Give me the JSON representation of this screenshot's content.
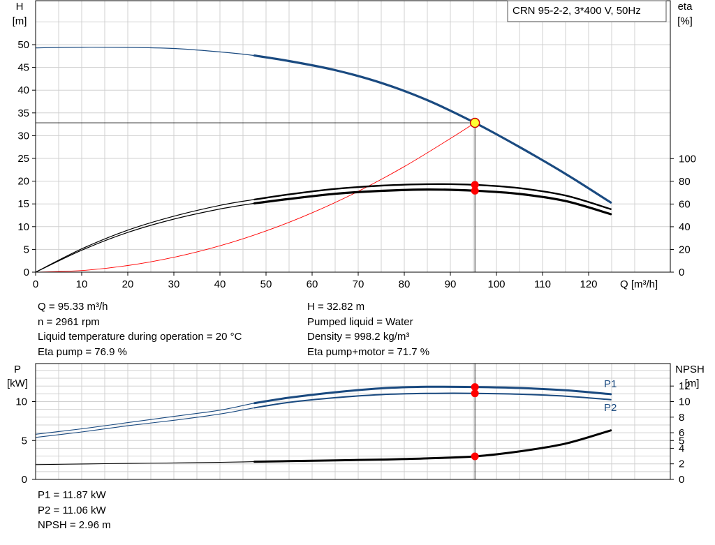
{
  "legend_box": "CRN 95-2-2, 3*400 V, 50Hz",
  "top_chart": {
    "y_label_left": "H",
    "y_unit_left": "[m]",
    "y_label_right": "eta",
    "y_unit_right": "[%]",
    "x_label": "Q [m³/h]"
  },
  "bottom_chart": {
    "y_label_left": "P",
    "y_unit_left": "[kW]",
    "y_label_right": "NPSH",
    "y_unit_right": "[m]",
    "p1_label": "P1",
    "p2_label": "P2"
  },
  "info_top_left": [
    "Q = 95.33 m³/h",
    "n = 2961 rpm",
    "Liquid temperature during operation = 20 °C",
    "Eta pump = 76.9 %"
  ],
  "info_top_right": [
    "H = 32.82 m",
    "Pumped liquid = Water",
    "Density = 998.2 kg/m³",
    "Eta pump+motor = 71.7 %"
  ],
  "info_bottom": [
    "P1 = 11.87 kW",
    "P2 = 11.06 kW",
    "NPSH = 2.96 m"
  ],
  "colors": {
    "head_curve": "#1a4a80",
    "power_curves": "#1a4a80",
    "efficiency_curves": "#000000",
    "npsh_curve": "#000000",
    "system_curve": "#ff0000",
    "duty_point_fill": "#ffff33",
    "duty_point_stroke": "#cc0000",
    "marker": "#ff0000",
    "grid": "#d0d0d0"
  },
  "chart_data": [
    {
      "type": "line",
      "xlabel": "Q [m³/h]",
      "ylabel": "H [m]",
      "y2label": "eta [%]",
      "xlim": [
        0,
        128
      ],
      "ylim": [
        0,
        50
      ],
      "y2lim": [
        0,
        100
      ],
      "x_ticks": [
        0,
        10,
        20,
        30,
        40,
        50,
        60,
        70,
        80,
        90,
        100,
        110,
        120
      ],
      "y_ticks": [
        0,
        5,
        10,
        15,
        20,
        25,
        30,
        35,
        40,
        45,
        50
      ],
      "y2_ticks": [
        0,
        20,
        40,
        60,
        80,
        100
      ],
      "grid": true,
      "duty_point": {
        "x": 95.33,
        "y": 32.82
      },
      "series": [
        {
          "axis": "left",
          "x": [
            0,
            10,
            20,
            30,
            40,
            47.5,
            55,
            65,
            75,
            85,
            95.33,
            105,
            115,
            124.8
          ],
          "y": [
            49.3,
            49.45,
            49.4,
            49.15,
            48.4,
            47.6,
            46.4,
            44.4,
            41.6,
            37.8,
            32.82,
            27.5,
            21.6,
            15.3
          ],
          "bold_from": 47.5
        },
        {
          "axis": "right",
          "x": [
            0,
            10,
            20,
            30,
            40,
            47.5,
            55,
            65,
            75,
            85,
            95.33,
            105,
            115,
            124.8
          ],
          "y": [
            0,
            20.5,
            37,
            49.3,
            58.8,
            64,
            68.5,
            73.3,
            76.2,
            77.5,
            76.9,
            74,
            67.5,
            55.5
          ],
          "bold_from": 47.5
        },
        {
          "axis": "right",
          "x": [
            0,
            10,
            20,
            30,
            40,
            47.5,
            55,
            65,
            75,
            85,
            95.33,
            105,
            115,
            124.8
          ],
          "y": [
            0,
            19.3,
            35,
            46.7,
            55.6,
            60.6,
            64.5,
            69,
            71.6,
            72.8,
            71.7,
            68.9,
            62.6,
            51.1
          ],
          "bold_from": 47.5
        },
        {
          "axis": "left",
          "x": [
            0,
            10,
            20,
            30,
            40,
            50,
            60,
            70,
            80,
            90,
            95.33
          ],
          "y": [
            0,
            0.36,
            1.45,
            3.27,
            5.8,
            9.06,
            13.05,
            17.76,
            23.2,
            29.37,
            32.82
          ]
        }
      ]
    },
    {
      "type": "line",
      "xlabel": "Q [m³/h]",
      "ylabel": "P [kW]",
      "y2label": "NPSH [m]",
      "xlim": [
        0,
        128
      ],
      "ylim": [
        0,
        13.5
      ],
      "y2lim": [
        0,
        13.5
      ],
      "y_ticks": [
        0,
        5,
        10
      ],
      "y2_ticks": [
        0,
        2,
        4,
        5,
        6,
        8,
        10,
        12
      ],
      "grid": true,
      "series": [
        {
          "name": "P1",
          "axis": "left",
          "x": [
            0,
            10,
            20,
            30,
            40,
            47.5,
            55,
            65,
            75,
            85,
            95.33,
            105,
            115,
            124.8
          ],
          "y": [
            5.8,
            6.5,
            7.3,
            8.1,
            8.9,
            9.8,
            10.5,
            11.2,
            11.7,
            11.9,
            11.87,
            11.75,
            11.45,
            10.95
          ],
          "bold_from": 47.5
        },
        {
          "name": "P2",
          "axis": "left",
          "x": [
            0,
            10,
            20,
            30,
            40,
            47.5,
            55,
            65,
            75,
            85,
            95.33,
            105,
            115,
            124.8
          ],
          "y": [
            5.4,
            6.1,
            6.9,
            7.6,
            8.4,
            9.2,
            9.9,
            10.5,
            10.9,
            11.05,
            11.06,
            10.95,
            10.7,
            10.25
          ],
          "bold_from": 47.5
        },
        {
          "axis": "right",
          "x": [
            0,
            10,
            20,
            30,
            40,
            47.5,
            55,
            65,
            75,
            85,
            95.33,
            105,
            115,
            124.8
          ],
          "y": [
            1.9,
            1.98,
            2.05,
            2.12,
            2.2,
            2.28,
            2.35,
            2.45,
            2.55,
            2.7,
            2.96,
            3.6,
            4.6,
            6.3
          ],
          "bold_from": 47.5
        }
      ],
      "markers": [
        {
          "series": "P1",
          "x": 95.33,
          "y": 11.87
        },
        {
          "series": "P2",
          "x": 95.33,
          "y": 11.06
        },
        {
          "series": "NPSH",
          "x": 95.33,
          "y": 2.96
        }
      ]
    }
  ]
}
